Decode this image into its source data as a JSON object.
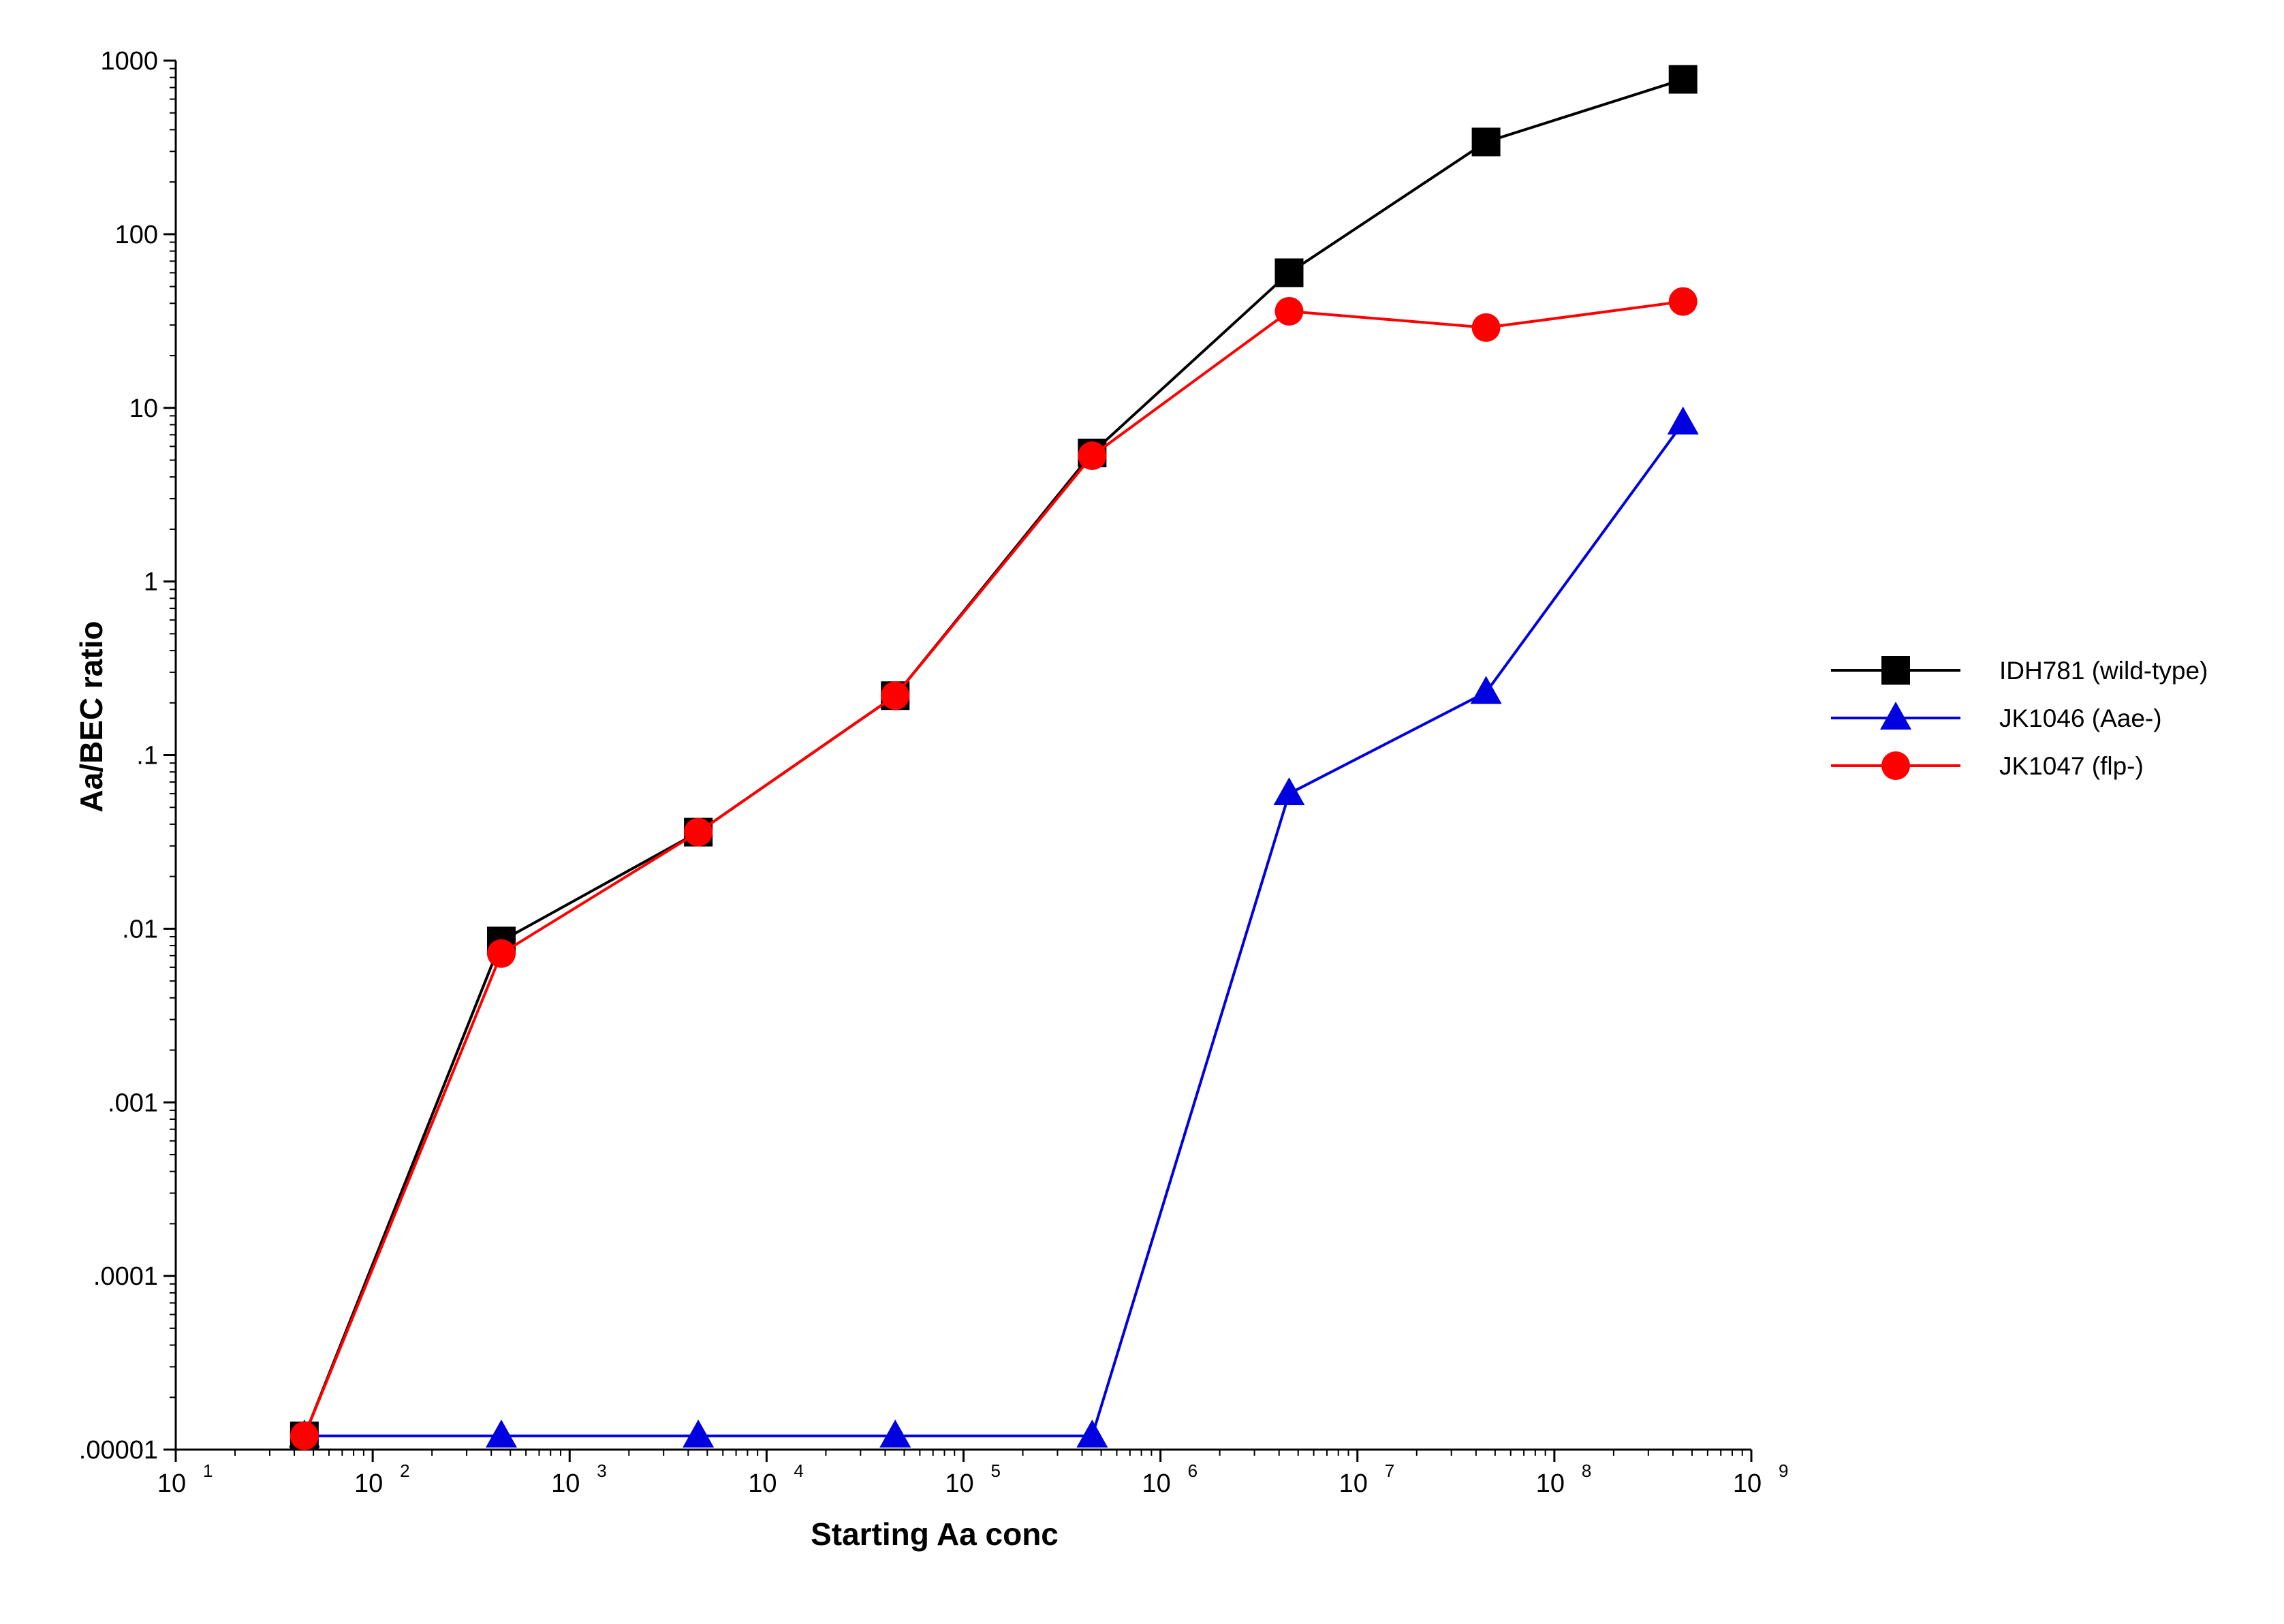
{
  "chart_data": {
    "type": "line",
    "xlabel": "Starting Aa conc",
    "ylabel": "Aa/BEC ratio",
    "x_scale": "log",
    "y_scale": "log",
    "xlim": [
      10,
      1000000000
    ],
    "ylim": [
      1e-05,
      1000
    ],
    "x_ticks": [
      {
        "value": 10,
        "base": "10",
        "exp": "1"
      },
      {
        "value": 100,
        "base": "10",
        "exp": "2"
      },
      {
        "value": 1000,
        "base": "10",
        "exp": "3"
      },
      {
        "value": 10000,
        "base": "10",
        "exp": "4"
      },
      {
        "value": 100000,
        "base": "10",
        "exp": "5"
      },
      {
        "value": 1000000,
        "base": "10",
        "exp": "6"
      },
      {
        "value": 10000000,
        "base": "10",
        "exp": "7"
      },
      {
        "value": 100000000,
        "base": "10",
        "exp": "8"
      },
      {
        "value": 1000000000,
        "base": "10",
        "exp": "9"
      }
    ],
    "y_ticks": [
      {
        "value": 1e-05,
        "label": ".00001"
      },
      {
        "value": 0.0001,
        "label": ".0001"
      },
      {
        "value": 0.001,
        "label": ".001"
      },
      {
        "value": 0.01,
        "label": ".01"
      },
      {
        "value": 0.1,
        "label": ".1"
      },
      {
        "value": 1,
        "label": "1"
      },
      {
        "value": 10,
        "label": "10"
      },
      {
        "value": 100,
        "label": "100"
      },
      {
        "value": 1000,
        "label": "1000"
      }
    ],
    "grid": false,
    "legend_position": "right",
    "x": [
      45,
      450,
      4500,
      45000,
      450000,
      4500000,
      45000000,
      450000000
    ],
    "series": [
      {
        "name": "IDH781 (wild-type)",
        "color": "#000000",
        "marker": "square",
        "values": [
          1.2e-05,
          0.0085,
          0.036,
          0.22,
          5.5,
          60,
          340,
          780
        ]
      },
      {
        "name": "JK1046 (Aae-)",
        "color": "#0000e0",
        "marker": "triangle",
        "values": [
          1.2e-05,
          1.2e-05,
          1.2e-05,
          1.2e-05,
          1.2e-05,
          0.06,
          0.23,
          8.2
        ]
      },
      {
        "name": "JK1047 (flp-)",
        "color": "#ff0000",
        "marker": "circle",
        "values": [
          1.2e-05,
          0.0072,
          0.036,
          0.22,
          5.3,
          36,
          29,
          41
        ]
      }
    ]
  }
}
